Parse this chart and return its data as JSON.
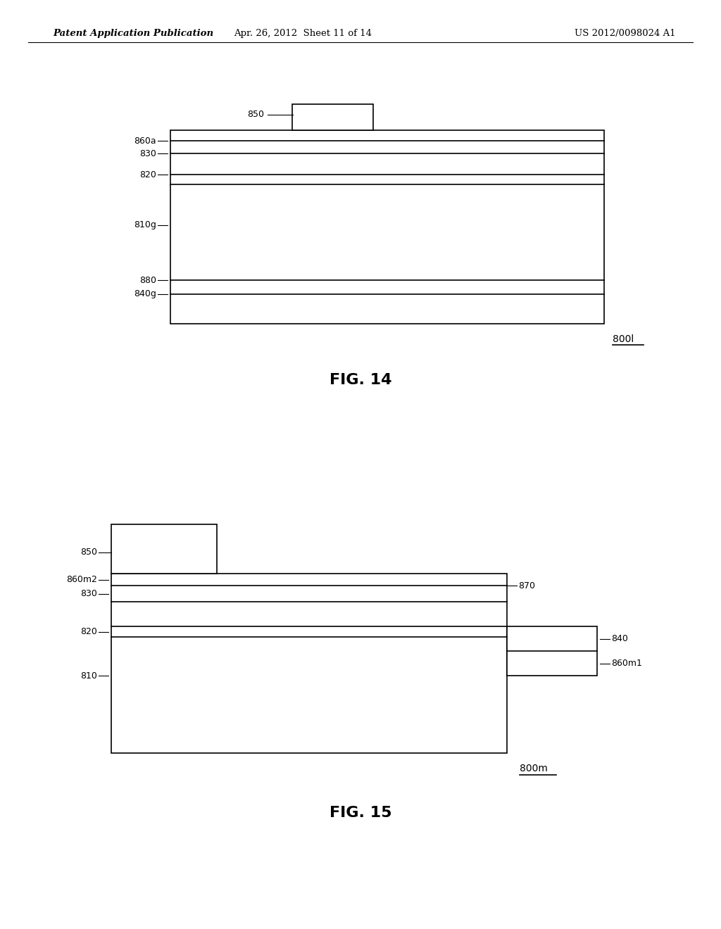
{
  "bg_color": "#ffffff",
  "header_left": "Patent Application Publication",
  "header_mid": "Apr. 26, 2012  Sheet 11 of 14",
  "header_right": "US 2012/0098024 A1",
  "fig14_caption": "FIG. 14",
  "fig15_caption": "FIG. 15",
  "fig14_label": "800l",
  "fig15_label": "800m"
}
